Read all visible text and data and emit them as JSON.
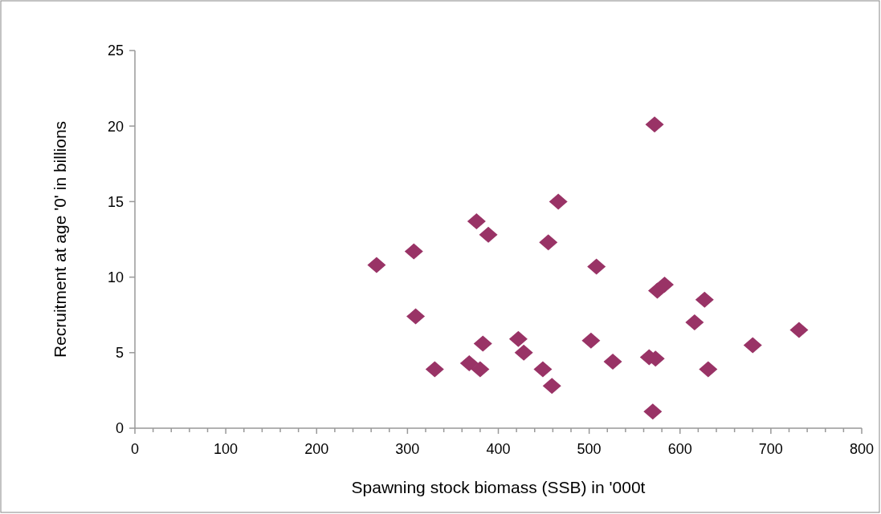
{
  "chart_data": {
    "type": "scatter",
    "xlabel": "Spawning stock biomass (SSB) in '000t",
    "ylabel": "Recruitment at age '0' in billions",
    "marker": "diamond",
    "grid": false,
    "xlim": [
      0,
      800
    ],
    "ylim": [
      0,
      25
    ],
    "xticks": [
      0,
      {
        "value": 20,
        "label": null
      },
      {
        "value": 40,
        "label": null
      },
      {
        "value": 60,
        "label": null
      },
      {
        "value": 80,
        "label": null
      },
      100,
      {
        "value": 120,
        "label": null
      },
      {
        "value": 140,
        "label": null
      },
      {
        "value": 160,
        "label": null
      },
      {
        "value": 180,
        "label": null
      },
      200,
      {
        "value": 220,
        "label": null
      },
      {
        "value": 240,
        "label": null
      },
      {
        "value": 260,
        "label": null
      },
      {
        "value": 280,
        "label": null
      },
      300,
      {
        "value": 320,
        "label": null
      },
      {
        "value": 340,
        "label": null
      },
      {
        "value": 360,
        "label": null
      },
      {
        "value": 380,
        "label": null
      },
      400,
      {
        "value": 420,
        "label": null
      },
      {
        "value": 440,
        "label": null
      },
      {
        "value": 460,
        "label": null
      },
      {
        "value": 480,
        "label": null
      },
      500,
      {
        "value": 520,
        "label": null
      },
      {
        "value": 540,
        "label": null
      },
      {
        "value": 560,
        "label": null
      },
      {
        "value": 580,
        "label": null
      },
      600,
      {
        "value": 620,
        "label": null
      },
      {
        "value": 640,
        "label": null
      },
      {
        "value": 660,
        "label": null
      },
      {
        "value": 680,
        "label": null
      },
      700,
      {
        "value": 720,
        "label": null
      },
      {
        "value": 740,
        "label": null
      },
      {
        "value": 760,
        "label": null
      },
      {
        "value": 780,
        "label": null
      },
      800
    ],
    "yticks": [
      0,
      5,
      10,
      15,
      20,
      25
    ],
    "series": [
      {
        "color": "#993366",
        "x": [
          266,
          307,
          309,
          330,
          376,
          389,
          383,
          368,
          380,
          572,
          466,
          455,
          508,
          575,
          583,
          627,
          616,
          731,
          680,
          422,
          428,
          449,
          459,
          502,
          526,
          566,
          573,
          631,
          570
        ],
        "values": [
          10.8,
          11.7,
          7.4,
          3.9,
          13.7,
          12.8,
          5.6,
          4.3,
          3.9,
          20.1,
          15.0,
          12.3,
          10.7,
          9.1,
          9.5,
          8.5,
          7.0,
          6.5,
          5.5,
          5.9,
          5.0,
          3.9,
          2.8,
          5.8,
          4.4,
          4.7,
          4.6,
          3.9,
          1.1
        ]
      }
    ]
  }
}
